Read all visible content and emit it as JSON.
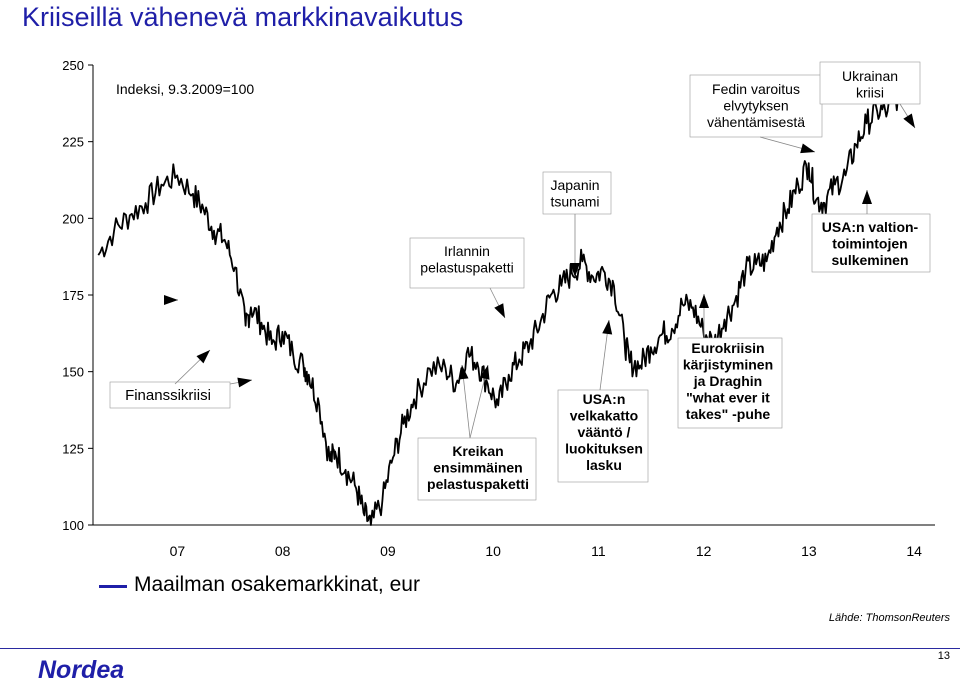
{
  "title": "Kriiseillä vähenevä markkinavaikutus",
  "source": "Lähde: ThomsonReuters",
  "page_number": "13",
  "logo_text": "Nordea",
  "colors": {
    "line": "#000000",
    "title": "#1f1fa8",
    "legend": "#1f1fa8",
    "background": "#ffffff"
  },
  "chart_data": {
    "type": "line",
    "ylabel_note": "Indeksi, 9.3.2009=100",
    "ylim": [
      100,
      250
    ],
    "yticks": [
      100,
      125,
      150,
      175,
      200,
      225,
      250
    ],
    "xlim": [
      2006.55,
      2014.55
    ],
    "xticks": [
      {
        "label": "07",
        "x": 2007.0
      },
      {
        "label": "08",
        "x": 2008.0
      },
      {
        "label": "09",
        "x": 2009.0
      },
      {
        "label": "10",
        "x": 2010.0
      },
      {
        "label": "11",
        "x": 2011.0
      },
      {
        "label": "12",
        "x": 2012.0
      },
      {
        "label": "13",
        "x": 2013.0
      },
      {
        "label": "14",
        "x": 2014.0
      }
    ],
    "grid": false,
    "legend_position": "bottom-left",
    "series": [
      {
        "name": "Maailman osakemarkkinat, eur",
        "color": "#000000",
        "x": [
          2006.6,
          2006.75,
          2006.9,
          2007.05,
          2007.2,
          2007.35,
          2007.5,
          2007.6,
          2007.7,
          2007.8,
          2007.9,
          2008.0,
          2008.05,
          2008.15,
          2008.25,
          2008.35,
          2008.45,
          2008.55,
          2008.6,
          2008.7,
          2008.8,
          2008.85,
          2008.95,
          2009.05,
          2009.12,
          2009.19,
          2009.3,
          2009.4,
          2009.5,
          2009.6,
          2009.75,
          2009.9,
          2010.0,
          2010.1,
          2010.2,
          2010.3,
          2010.4,
          2010.5,
          2010.6,
          2010.7,
          2010.8,
          2010.9,
          2011.0,
          2011.1,
          2011.2,
          2011.3,
          2011.4,
          2011.5,
          2011.6,
          2011.65,
          2011.75,
          2011.85,
          2011.95,
          2012.05,
          2012.15,
          2012.25,
          2012.35,
          2012.45,
          2012.55,
          2012.65,
          2012.75,
          2012.85,
          2012.95,
          2013.05,
          2013.15,
          2013.25,
          2013.35,
          2013.42,
          2013.5,
          2013.6,
          2013.7,
          2013.8,
          2013.9,
          2014.0,
          2014.1,
          2014.2
        ],
        "y": [
          188,
          196,
          201,
          205,
          211,
          214,
          208,
          203,
          196,
          193,
          184,
          165,
          171,
          166,
          159,
          163,
          156,
          152,
          149,
          139,
          121,
          124,
          118,
          112,
          104,
          100,
          108,
          122,
          133,
          141,
          151,
          151,
          146,
          156,
          153,
          146,
          139,
          149,
          154,
          159,
          166,
          175,
          178,
          182,
          186,
          181,
          183,
          178,
          160,
          153,
          152,
          158,
          162,
          164,
          172,
          171,
          163,
          159,
          167,
          173,
          183,
          185,
          186,
          197,
          203,
          211,
          218,
          206,
          205,
          211,
          214,
          224,
          231,
          235,
          235,
          240
        ]
      }
    ],
    "annotations": [
      {
        "text": "Finanssikriisi",
        "lines": [
          "Finanssikriisi"
        ],
        "bold": false
      },
      {
        "text": "Irlannin pelastuspaketti",
        "lines": [
          "Irlannin",
          "pelastuspaketti"
        ],
        "bold": false
      },
      {
        "text": "Japanin tsunami",
        "lines": [
          "Japanin",
          "tsunami"
        ],
        "bold": false
      },
      {
        "text": "Fedin varoitus elvytyksen vähentämisestä",
        "lines": [
          "Fedin varoitus",
          "elvytyksen",
          "vähentämisestä"
        ],
        "bold": false
      },
      {
        "text": "Ukrainan kriisi",
        "lines": [
          "Ukrainan",
          "kriisi"
        ],
        "bold": false
      },
      {
        "text": "USA:n valtiontoimintojen sulkeminen",
        "lines": [
          "USA:n valtion-",
          "toimintojen",
          "sulkeminen"
        ],
        "bold": true
      },
      {
        "text": "Kreikan ensimmäinen pelastuspaketti",
        "lines": [
          "Kreikan",
          "ensimmäinen",
          "pelastuspaketti"
        ],
        "bold": true
      },
      {
        "text": "USA:n velkakatto vääntö / luokituksen lasku",
        "lines": [
          "USA:n",
          "velkakatto",
          "vääntö /",
          "luokituksen",
          "lasku"
        ],
        "bold": true
      },
      {
        "text": "Eurokriisin kärjistyminen ja Draghin \"what ever it takes\" -puhe",
        "lines": [
          "Eurokriisin",
          "kärjistyminen",
          "ja Draghin",
          "\"what ever it",
          "takes\" -puhe"
        ],
        "bold": true
      }
    ]
  }
}
